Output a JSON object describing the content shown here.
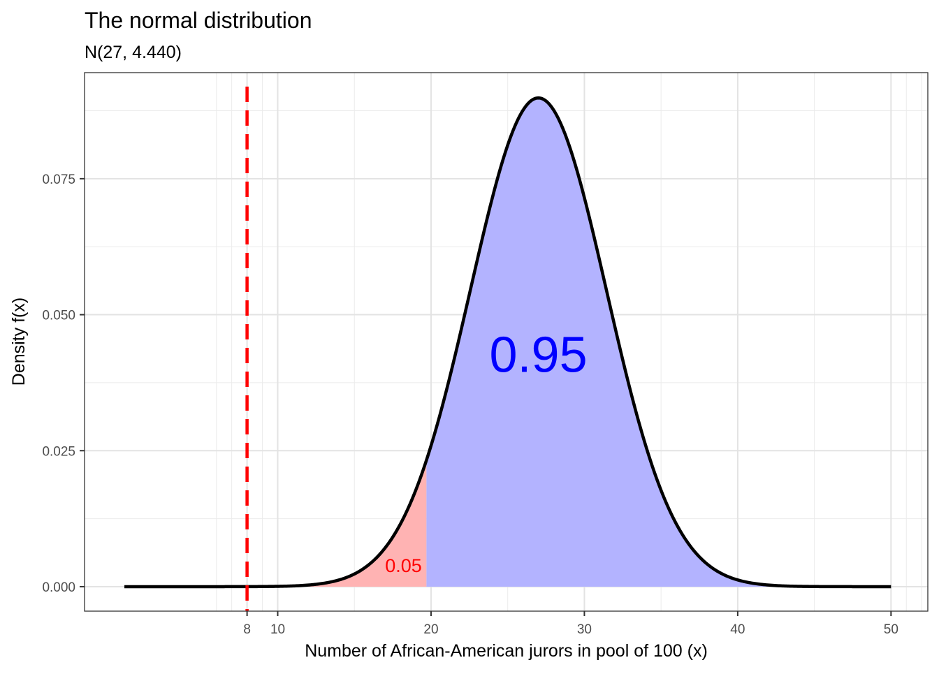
{
  "chart_data": {
    "type": "area",
    "title": "The normal distribution",
    "subtitle": "N(27, 4.440)",
    "xlabel": "Number of African-American jurors in pool of 100 (x)",
    "ylabel": "Density f(x)",
    "distribution": {
      "mean": 27,
      "sd": 4.44
    },
    "curve_range": [
      0,
      50
    ],
    "xlim": [
      -2.6,
      52.4
    ],
    "ylim": [
      -0.0045,
      0.0945
    ],
    "x_ticks": [
      8,
      10,
      20,
      30,
      40,
      50
    ],
    "x_tick_labels": [
      "8",
      "10",
      "20",
      "30",
      "40",
      "50"
    ],
    "x_minor_grid": [
      6,
      7,
      9,
      15,
      25,
      35,
      45,
      51,
      52
    ],
    "y_ticks": [
      0,
      0.025,
      0.05,
      0.075
    ],
    "y_tick_labels": [
      "0.000",
      "0.025",
      "0.050",
      "0.075"
    ],
    "y_minor_grid": [
      0.0125,
      0.0375,
      0.0625,
      0.0875
    ],
    "shaded_regions": [
      {
        "from": 0,
        "to": 19.7,
        "color": "#ffb3b3",
        "probability_label": "0.05",
        "label_color": "#ff0000",
        "label_x": 18,
        "label_y": 0.0027
      },
      {
        "from": 19.7,
        "to": 50,
        "color": "#b3b3ff",
        "probability_label": "0.95",
        "label_color": "#0000ff",
        "label_x": 27,
        "label_y": 0.0395
      }
    ],
    "reference_line": {
      "x": 8,
      "color": "#ff0000",
      "style": "dashed"
    },
    "grid": true
  }
}
